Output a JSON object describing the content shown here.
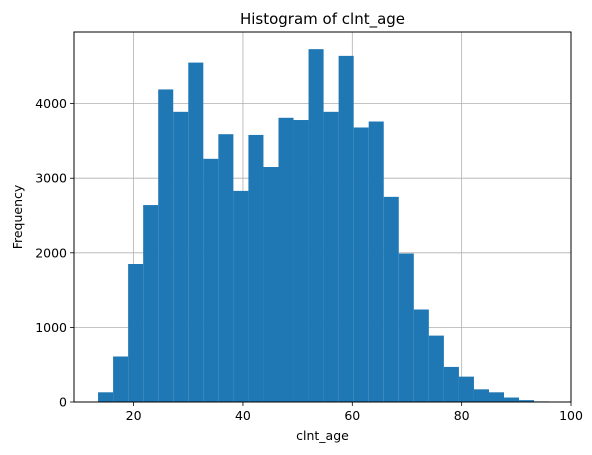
{
  "chart_data": {
    "type": "bar",
    "title": "Histogram of clnt_age",
    "xlabel": "clnt_age",
    "ylabel": "Frequency",
    "xlim": [
      9.1,
      100
    ],
    "ylim": [
      0,
      4960
    ],
    "xticks": [
      20,
      40,
      60,
      80,
      100
    ],
    "yticks": [
      0,
      1000,
      2000,
      3000,
      4000
    ],
    "grid": true,
    "bar_color": "#1f77b4",
    "bin_start": 13.5,
    "bin_width": 2.75,
    "values": [
      130,
      610,
      1850,
      2640,
      4190,
      3890,
      4550,
      3260,
      3590,
      2830,
      3580,
      3150,
      3810,
      3780,
      4730,
      3890,
      4640,
      3680,
      3760,
      2750,
      1990,
      1240,
      890,
      470,
      340,
      170,
      130,
      60,
      25,
      8
    ]
  }
}
